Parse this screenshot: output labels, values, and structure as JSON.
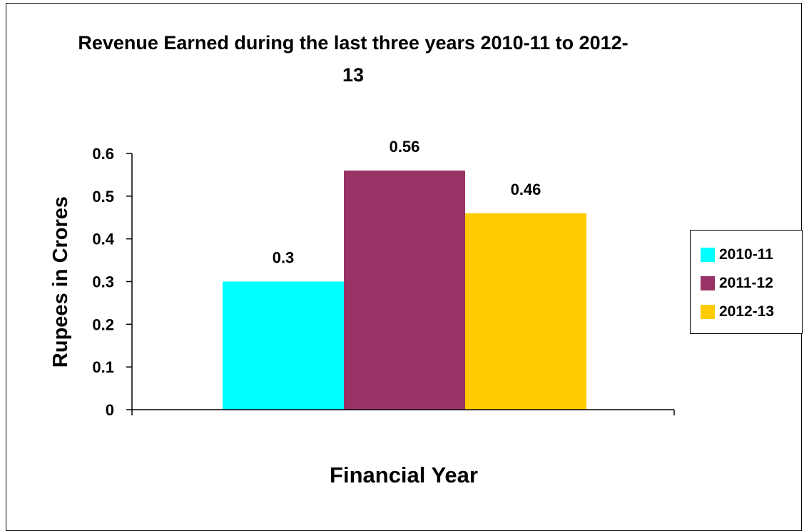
{
  "chart_data": {
    "type": "bar",
    "title": "Revenue Earned during the last three years 2010-11 to 2012-13",
    "xlabel": "Financial Year",
    "ylabel": "Rupees in Crores",
    "ylim": [
      0,
      0.6
    ],
    "yticks": [
      "0",
      "0.1",
      "0.2",
      "0.3",
      "0.4",
      "0.5",
      "0.6"
    ],
    "grid": false,
    "legend_position": "right",
    "series": [
      {
        "name": "2010-11",
        "value": 0.3,
        "label": "0.3",
        "color": "#00FFFF"
      },
      {
        "name": "2011-12",
        "value": 0.56,
        "label": "0.56",
        "color": "#993366"
      },
      {
        "name": "2012-13",
        "value": 0.46,
        "label": "0.46",
        "color": "#FFCC00"
      }
    ]
  }
}
